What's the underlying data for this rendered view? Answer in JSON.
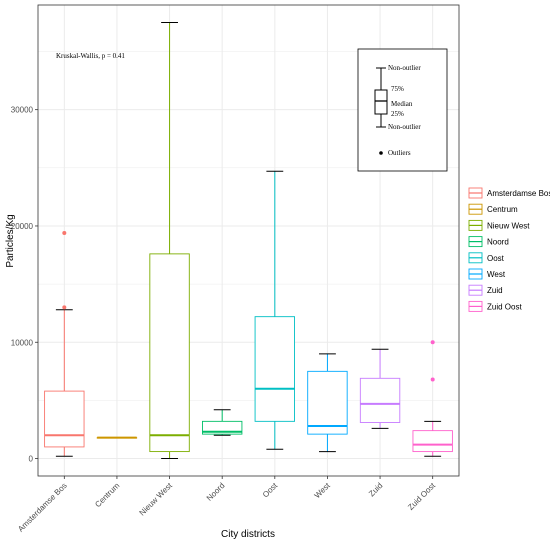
{
  "chart_data": {
    "type": "boxplot",
    "xlabel": "City districts",
    "ylabel": "Particles/Kg",
    "ylim": [
      -1500,
      39000
    ],
    "yticks": [
      0,
      10000,
      20000,
      30000
    ],
    "ytick_labels": [
      "0",
      "10000",
      "20000",
      "30000"
    ],
    "grid": true,
    "annotation": "Kruskal-Wallis, p = 0.41",
    "legend_position": "right",
    "categories": [
      "Amsterdamse Bos",
      "Centrum",
      "Nieuw West",
      "Noord",
      "Oost",
      "West",
      "Zuid",
      "Zuid Oost"
    ],
    "colors": [
      "#F8766D",
      "#CD9600",
      "#7CAE00",
      "#00BE67",
      "#00BFC4",
      "#00A9FF",
      "#C77CFF",
      "#FF61CC"
    ],
    "boxes": [
      {
        "name": "Amsterdamse Bos",
        "lower_whisker": 200,
        "q1": 1000,
        "median": 2000,
        "q3": 5800,
        "upper_whisker": 12800,
        "outliers": [
          13000,
          19400
        ]
      },
      {
        "name": "Centrum",
        "lower_whisker": 1800,
        "q1": 1800,
        "median": 1800,
        "q3": 1800,
        "upper_whisker": 1800,
        "outliers": []
      },
      {
        "name": "Nieuw West",
        "lower_whisker": 0,
        "q1": 600,
        "median": 2000,
        "q3": 17600,
        "upper_whisker": 37500,
        "outliers": []
      },
      {
        "name": "Noord",
        "lower_whisker": 2000,
        "q1": 2100,
        "median": 2300,
        "q3": 3200,
        "upper_whisker": 4200,
        "outliers": []
      },
      {
        "name": "Oost",
        "lower_whisker": 800,
        "q1": 3200,
        "median": 6000,
        "q3": 12200,
        "upper_whisker": 24700,
        "outliers": []
      },
      {
        "name": "West",
        "lower_whisker": 600,
        "q1": 2100,
        "median": 2800,
        "q3": 7500,
        "upper_whisker": 9000,
        "outliers": []
      },
      {
        "name": "Zuid",
        "lower_whisker": 2600,
        "q1": 3100,
        "median": 4700,
        "q3": 6900,
        "upper_whisker": 9400,
        "outliers": []
      },
      {
        "name": "Zuid Oost",
        "lower_whisker": 200,
        "q1": 600,
        "median": 1200,
        "q3": 2400,
        "upper_whisker": 3200,
        "outliers": [
          6800,
          10000
        ]
      }
    ],
    "key": {
      "labels": [
        "Non-outlier",
        "75%",
        "Median",
        "25%",
        "Non-outlier",
        "Outliers"
      ]
    }
  }
}
